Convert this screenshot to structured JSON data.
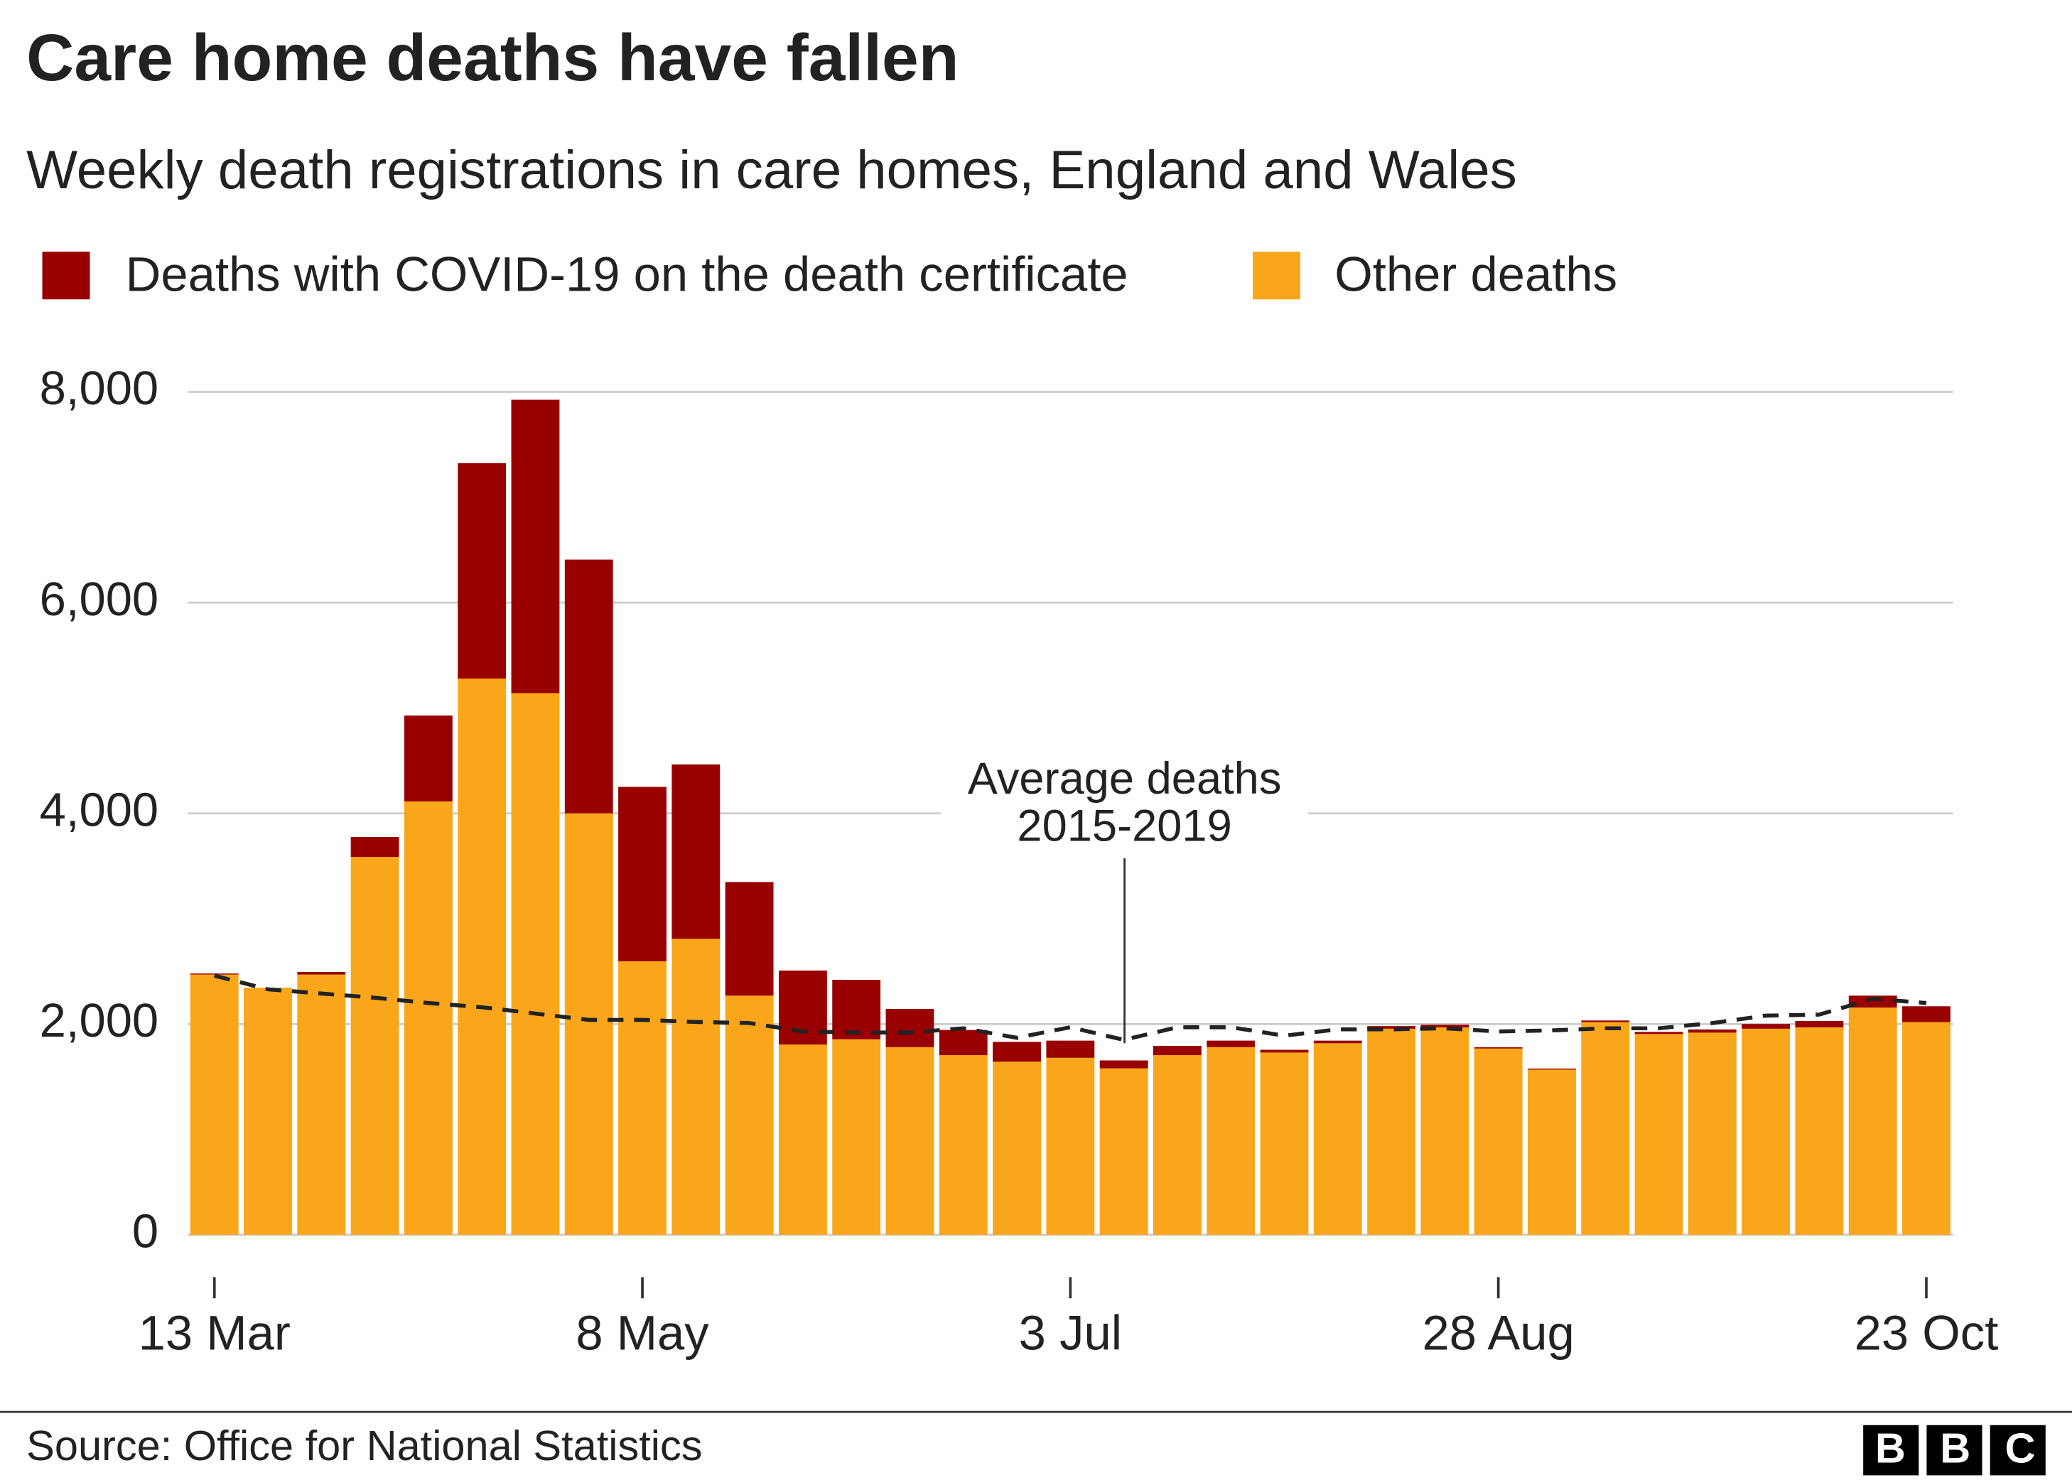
{
  "chart_data": {
    "type": "bar",
    "title": "Care home deaths have fallen",
    "subtitle": "Weekly death registrations in care homes, England and Wales",
    "categories": [
      "13 Mar",
      null,
      null,
      null,
      null,
      null,
      null,
      null,
      "8 May",
      null,
      null,
      null,
      null,
      null,
      null,
      null,
      "3 Jul",
      null,
      null,
      null,
      null,
      null,
      null,
      null,
      "28 Aug",
      null,
      null,
      null,
      null,
      null,
      null,
      null,
      "23 Oct"
    ],
    "series": [
      {
        "name": "Deaths with COVID-19 on the death certificate",
        "color": "#990000",
        "values": [
          10,
          0,
          25,
          189,
          815,
          2044,
          2784,
          2408,
          1655,
          1655,
          1078,
          702,
          564,
          363,
          239,
          188,
          163,
          75,
          88,
          62,
          26,
          25,
          25,
          25,
          12,
          10,
          15,
          20,
          30,
          45,
          60,
          113,
          150
        ]
      },
      {
        "name": "Other deaths",
        "color": "#faa61a",
        "values": [
          2470,
          2345,
          2470,
          3586,
          4113,
          5279,
          5141,
          4000,
          2596,
          2809,
          2270,
          1806,
          1856,
          1781,
          1705,
          1643,
          1680,
          1580,
          1705,
          1781,
          1730,
          1818,
          1956,
          1969,
          1768,
          1568,
          2019,
          1906,
          1919,
          1956,
          1969,
          2157,
          2019
        ]
      }
    ],
    "stacked": true,
    "average": {
      "color": "#222222",
      "dashed": true,
      "values": [
        2460,
        2330,
        2290,
        2250,
        2200,
        2160,
        2100,
        2040,
        2040,
        2020,
        2010,
        1930,
        1920,
        1920,
        1960,
        1870,
        1970,
        1850,
        1970,
        1970,
        1890,
        1950,
        1950,
        1960,
        1930,
        1940,
        1960,
        1960,
        2010,
        2080,
        2090,
        2240,
        2200
      ]
    },
    "annotation": [
      "Average deaths",
      "2015-2019"
    ],
    "ylim": [
      0,
      8000
    ],
    "yticks": [
      0,
      {
        "value": 2000,
        "label": "2,000"
      },
      {
        "value": 4000,
        "label": "4,000"
      },
      {
        "value": 6000,
        "label": "6,000"
      },
      {
        "value": 8000,
        "label": "8,000"
      }
    ],
    "grid": true,
    "legend": "top-left",
    "source": "Source: Office for National Statistics",
    "logo": "BBC"
  }
}
